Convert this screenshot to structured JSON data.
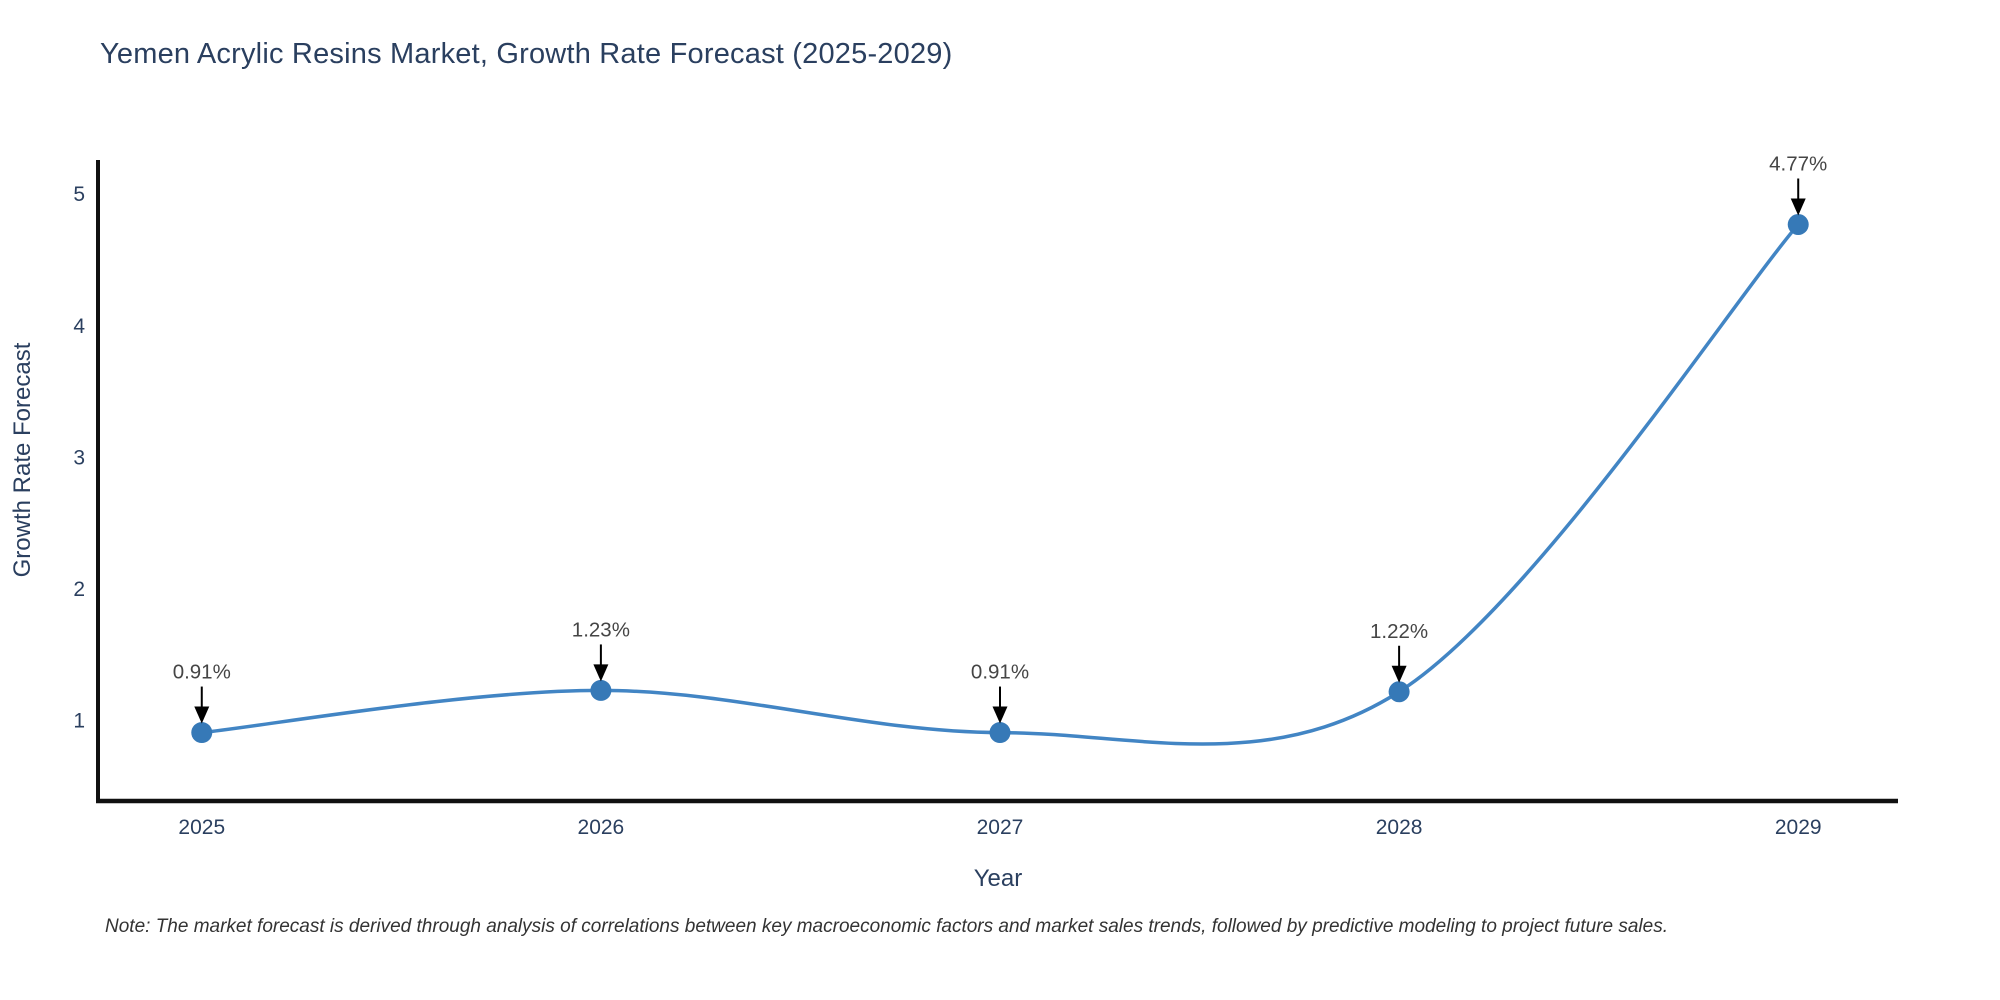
{
  "title": "Yemen Acrylic Resins Market, Growth Rate Forecast (2025-2029)",
  "note": "Note: The market forecast is derived through analysis of correlations between key macroeconomic factors and market sales trends, followed by predictive modeling to project future sales.",
  "chart_data": {
    "type": "line",
    "curve": "spline",
    "title": "Yemen Acrylic Resins Market, Growth Rate Forecast (2025-2029)",
    "x": [
      2025,
      2026,
      2027,
      2028,
      2029
    ],
    "values": [
      0.91,
      1.23,
      0.91,
      1.22,
      4.77
    ],
    "point_labels": [
      "0.91%",
      "1.23%",
      "0.91%",
      "1.22%",
      "4.77%"
    ],
    "xlabel": "Year",
    "ylabel": "Growth Rate Forecast",
    "xticks": [
      "2025",
      "2026",
      "2027",
      "2028",
      "2029"
    ],
    "xtick_values": [
      2025,
      2026,
      2027,
      2028,
      2029
    ],
    "yticks": [
      1,
      2,
      3,
      4,
      5
    ],
    "xlim": [
      2024.74,
      2029.25
    ],
    "ylim": [
      0.39,
      5.26
    ],
    "grid": false,
    "legend": "none",
    "colors": {
      "line": "#4285c4",
      "marker": "#3679b7",
      "axis": "#111111",
      "tick_text": "#2a3f5f",
      "axis_title_text": "#2a3f5f",
      "annotation_text": "#454545",
      "annotation_arrow": "#000000",
      "background": "#ffffff"
    }
  }
}
